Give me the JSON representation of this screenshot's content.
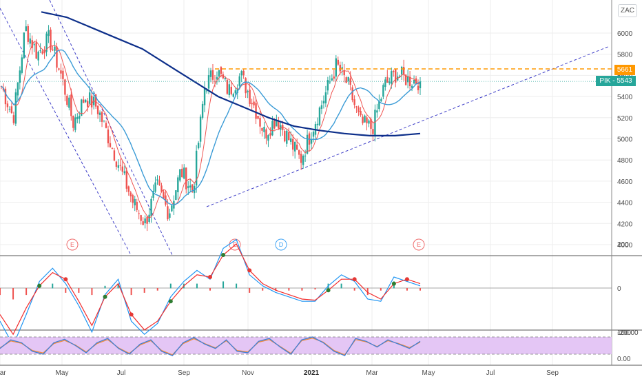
{
  "toolbar": {
    "scale_button": "ZAC"
  },
  "price_tags": {
    "resistance": {
      "label": "5661",
      "value": 5661,
      "color": "#ff9800"
    },
    "last_price": {
      "symbol": "PIK",
      "label": "PIK - 5543",
      "value": 5543,
      "color": "#26a69a"
    }
  },
  "events": [
    {
      "label": "E",
      "color": "#ef6c6c"
    },
    {
      "label": "E",
      "color": "#ef6c6c"
    },
    {
      "label": "D",
      "color": "#42a5f5"
    },
    {
      "label": "E",
      "color": "#ef6c6c"
    }
  ],
  "colors": {
    "candle_up": "#26a69a",
    "candle_down": "#ef5350",
    "ma_long": "#0d2f8a",
    "ma_mid": "#3a9bd6",
    "ma_short": "#ef5350",
    "trendline": "#3f3fc8",
    "rsi_band": "#e4c6f5",
    "rsi_line1": "#3f7fd8",
    "rsi_line2": "#f08a3c",
    "macd_line1": "#2196f3",
    "macd_line2": "#f22b2b",
    "grid": "#eeeeee"
  },
  "chart_data": [
    {
      "type": "candlestick",
      "panel": "price",
      "title": "",
      "ylim": [
        3900,
        6150
      ],
      "yticks": [
        4000,
        4200,
        4400,
        4600,
        4800,
        5000,
        5200,
        5400,
        5600,
        5800,
        6000
      ],
      "xlabels": [
        "Mar",
        "May",
        "Jul",
        "Sep",
        "Nov",
        "2021",
        "Mar",
        "May",
        "Jul",
        "Sep"
      ],
      "bold_xlabel": "2021",
      "price_path": [
        {
          "x": "Mar 2020",
          "close": 5500
        },
        {
          "x": "Mar 2020",
          "close": 5200
        },
        {
          "x": "Apr 2020",
          "close": 6050
        },
        {
          "x": "Apr 2020",
          "close": 5800
        },
        {
          "x": "May 2020",
          "close": 5950
        },
        {
          "x": "May 2020",
          "close": 5600
        },
        {
          "x": "May 2020",
          "close": 5150
        },
        {
          "x": "Jun 2020",
          "close": 5400
        },
        {
          "x": "Jun 2020",
          "close": 5300
        },
        {
          "x": "Jul 2020",
          "close": 5000
        },
        {
          "x": "Jul 2020",
          "close": 4700
        },
        {
          "x": "Aug 2020",
          "close": 4400
        },
        {
          "x": "Aug 2020",
          "close": 4200
        },
        {
          "x": "Sep 2020",
          "close": 4550
        },
        {
          "x": "Sep 2020",
          "close": 4300
        },
        {
          "x": "Sep 2020",
          "close": 4700
        },
        {
          "x": "Oct 2020",
          "close": 4500
        },
        {
          "x": "Oct 2020",
          "close": 5500
        },
        {
          "x": "Oct 2020",
          "close": 5650
        },
        {
          "x": "Nov 2020",
          "close": 5450
        },
        {
          "x": "Nov 2020",
          "close": 5600
        },
        {
          "x": "Nov 2020",
          "close": 5350
        },
        {
          "x": "Dec 2020",
          "close": 5050
        },
        {
          "x": "Dec 2020",
          "close": 5200
        },
        {
          "x": "Dec 2020",
          "close": 5000
        },
        {
          "x": "Jan 2021",
          "close": 4800
        },
        {
          "x": "Jan 2021",
          "close": 5100
        },
        {
          "x": "Feb 2021",
          "close": 5400
        },
        {
          "x": "Feb 2021",
          "close": 5700
        },
        {
          "x": "Feb 2021",
          "close": 5500
        },
        {
          "x": "Mar 2021",
          "close": 5150
        },
        {
          "x": "Mar 2021",
          "close": 5100
        },
        {
          "x": "Mar 2021",
          "close": 5500
        },
        {
          "x": "Apr 2021",
          "close": 5620
        },
        {
          "x": "Apr 2021",
          "close": 5560
        },
        {
          "x": "Apr 2021",
          "close": 5543
        }
      ],
      "ma_long_path": [
        6200,
        6150,
        6050,
        5950,
        5850,
        5700,
        5550,
        5400,
        5300,
        5200,
        5120,
        5080,
        5050,
        5030,
        5030,
        5050
      ],
      "resistance_level": 5661,
      "annotations": [
        "resistance 5661 (dashed)",
        "ascending support trendline",
        "descending channel lines"
      ]
    },
    {
      "type": "line",
      "panel": "macd",
      "ylim": [
        -300,
        300
      ],
      "yticks": [
        200,
        0,
        -200
      ],
      "series": [
        {
          "values": [
            -150,
            -260,
            -120,
            30,
            90,
            20,
            -80,
            -200,
            -30,
            40,
            -150,
            -210,
            -160,
            -40,
            30,
            80,
            40,
            180,
            220,
            60,
            10,
            -20,
            -40,
            -60,
            -60,
            10,
            60,
            30,
            -50,
            -60,
            50,
            30,
            10
          ]
        },
        {
          "values": [
            -120,
            -210,
            -90,
            10,
            70,
            40,
            -60,
            -170,
            -40,
            20,
            -120,
            -190,
            -150,
            -60,
            10,
            60,
            50,
            150,
            200,
            80,
            20,
            -10,
            -30,
            -50,
            -55,
            -10,
            40,
            40,
            -20,
            -50,
            20,
            40,
            20
          ]
        }
      ]
    },
    {
      "type": "line",
      "panel": "rsi",
      "ylim": [
        0,
        100
      ],
      "yticks": [
        100,
        0
      ],
      "yticklabels": [
        "100.00",
        "0.00"
      ],
      "band": [
        20,
        80
      ],
      "series": [
        {
          "values": [
            40,
            70,
            60,
            30,
            20,
            60,
            72,
            50,
            25,
            60,
            75,
            40,
            20,
            55,
            70,
            30,
            15,
            60,
            78,
            55,
            40,
            70,
            30,
            25,
            65,
            75,
            45,
            20,
            70,
            80,
            60,
            30,
            15,
            75,
            65,
            45,
            70,
            55,
            40,
            65
          ]
        },
        {
          "values": [
            42,
            66,
            58,
            33,
            24,
            57,
            68,
            52,
            28,
            57,
            71,
            42,
            23,
            52,
            67,
            33,
            18,
            57,
            74,
            57,
            42,
            67,
            33,
            28,
            62,
            71,
            47,
            23,
            67,
            76,
            62,
            33,
            18,
            71,
            63,
            47,
            67,
            57,
            43,
            62
          ]
        }
      ]
    }
  ]
}
